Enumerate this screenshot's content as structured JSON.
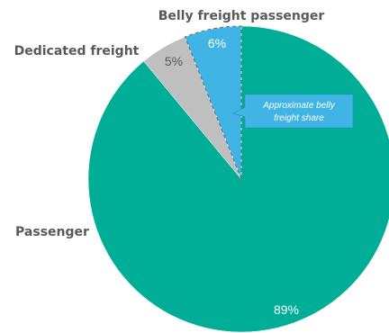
{
  "chart_data": {
    "type": "pie",
    "slices": [
      {
        "label": "Passenger",
        "value": 89,
        "value_label": "89%",
        "color": "#00AE97",
        "value_text_color": "#ffffff"
      },
      {
        "label": "Dedicated freight",
        "value": 5,
        "value_label": "5%",
        "color": "#BFBFBF",
        "value_text_color": "#595959"
      },
      {
        "label": "Belly freight passenger",
        "value": 6,
        "value_label": "6%",
        "color": "#41B4E6",
        "value_text_color": "#ffffff"
      }
    ],
    "start": "12 o'clock",
    "direction": "clockwise",
    "callout": {
      "text_lines": [
        "Approximate belly",
        "freight share"
      ],
      "color": "#41B4E6",
      "target_slice": "Belly freight passenger"
    }
  }
}
